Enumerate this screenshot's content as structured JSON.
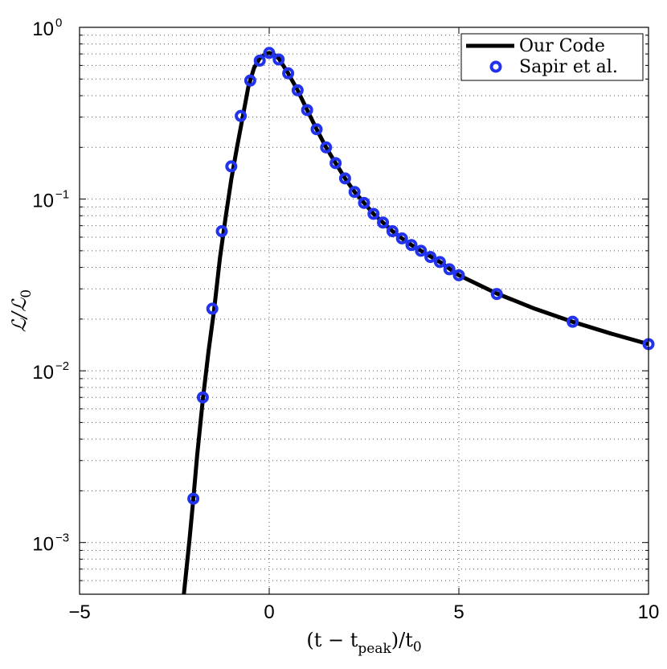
{
  "chart_data": {
    "type": "line",
    "title": "",
    "xlabel": "(t − t_peak)/t_0",
    "xlabel_main": "(t − t",
    "xlabel_sub": "peak",
    "xlabel_tail": ")/t",
    "xlabel_tail_sub": "0",
    "ylabel": "ℒ/ℒ_0",
    "ylabel_main": "ℒ/ℒ",
    "ylabel_sub": "0",
    "xlim": [
      -5,
      10
    ],
    "ylim": [
      0.0005,
      1
    ],
    "yscale": "log",
    "grid": true,
    "legend_position": "top-right",
    "x_ticks": [
      {
        "value": -5,
        "label": "−5"
      },
      {
        "value": 0,
        "label": "0"
      },
      {
        "value": 5,
        "label": "5"
      },
      {
        "value": 10,
        "label": "10"
      }
    ],
    "y_ticks": [
      {
        "value": 0.001,
        "base": "10",
        "exp": "−3"
      },
      {
        "value": 0.01,
        "base": "10",
        "exp": "−2"
      },
      {
        "value": 0.1,
        "base": "10",
        "exp": "−1"
      },
      {
        "value": 1,
        "base": "10",
        "exp": "0"
      }
    ],
    "series": [
      {
        "name": "Our Code",
        "style": "line",
        "color": "#000000",
        "x": [
          -2.25,
          -2.1,
          -2.0,
          -1.9,
          -1.75,
          -1.6,
          -1.45,
          -1.3,
          -1.15,
          -1.0,
          -0.85,
          -0.7,
          -0.55,
          -0.4,
          -0.25,
          -0.1,
          0.0,
          0.1,
          0.25,
          0.5,
          0.75,
          1.0,
          1.25,
          1.5,
          1.75,
          2.0,
          2.25,
          2.5,
          2.75,
          3.0,
          3.25,
          3.5,
          3.75,
          4.0,
          4.5,
          5.0,
          6.0,
          7.0,
          8.0,
          9.0,
          10.0
        ],
        "y": [
          0.0005,
          0.00105,
          0.0018,
          0.0032,
          0.0068,
          0.013,
          0.023,
          0.045,
          0.078,
          0.13,
          0.2,
          0.3,
          0.45,
          0.58,
          0.66,
          0.7,
          0.71,
          0.7,
          0.66,
          0.54,
          0.43,
          0.33,
          0.255,
          0.2,
          0.162,
          0.132,
          0.11,
          0.095,
          0.082,
          0.073,
          0.065,
          0.059,
          0.054,
          0.05,
          0.043,
          0.036,
          0.0282,
          0.023,
          0.0193,
          0.0165,
          0.0143
        ]
      },
      {
        "name": "Sapir et al.",
        "style": "marker",
        "color": "#2233ee",
        "x": [
          -2.0,
          -1.75,
          -1.5,
          -1.25,
          -1.0,
          -0.75,
          -0.5,
          -0.25,
          0.0,
          0.25,
          0.5,
          0.75,
          1.0,
          1.25,
          1.5,
          1.75,
          2.0,
          2.25,
          2.5,
          2.75,
          3.0,
          3.25,
          3.5,
          3.75,
          4.0,
          4.25,
          4.5,
          4.75,
          5.0,
          6.0,
          8.0,
          10.0
        ],
        "y": [
          0.0018,
          0.007,
          0.023,
          0.065,
          0.155,
          0.305,
          0.49,
          0.64,
          0.71,
          0.65,
          0.54,
          0.43,
          0.33,
          0.255,
          0.2,
          0.162,
          0.132,
          0.11,
          0.095,
          0.082,
          0.073,
          0.065,
          0.059,
          0.054,
          0.05,
          0.046,
          0.043,
          0.039,
          0.036,
          0.028,
          0.0193,
          0.0143
        ]
      }
    ]
  }
}
